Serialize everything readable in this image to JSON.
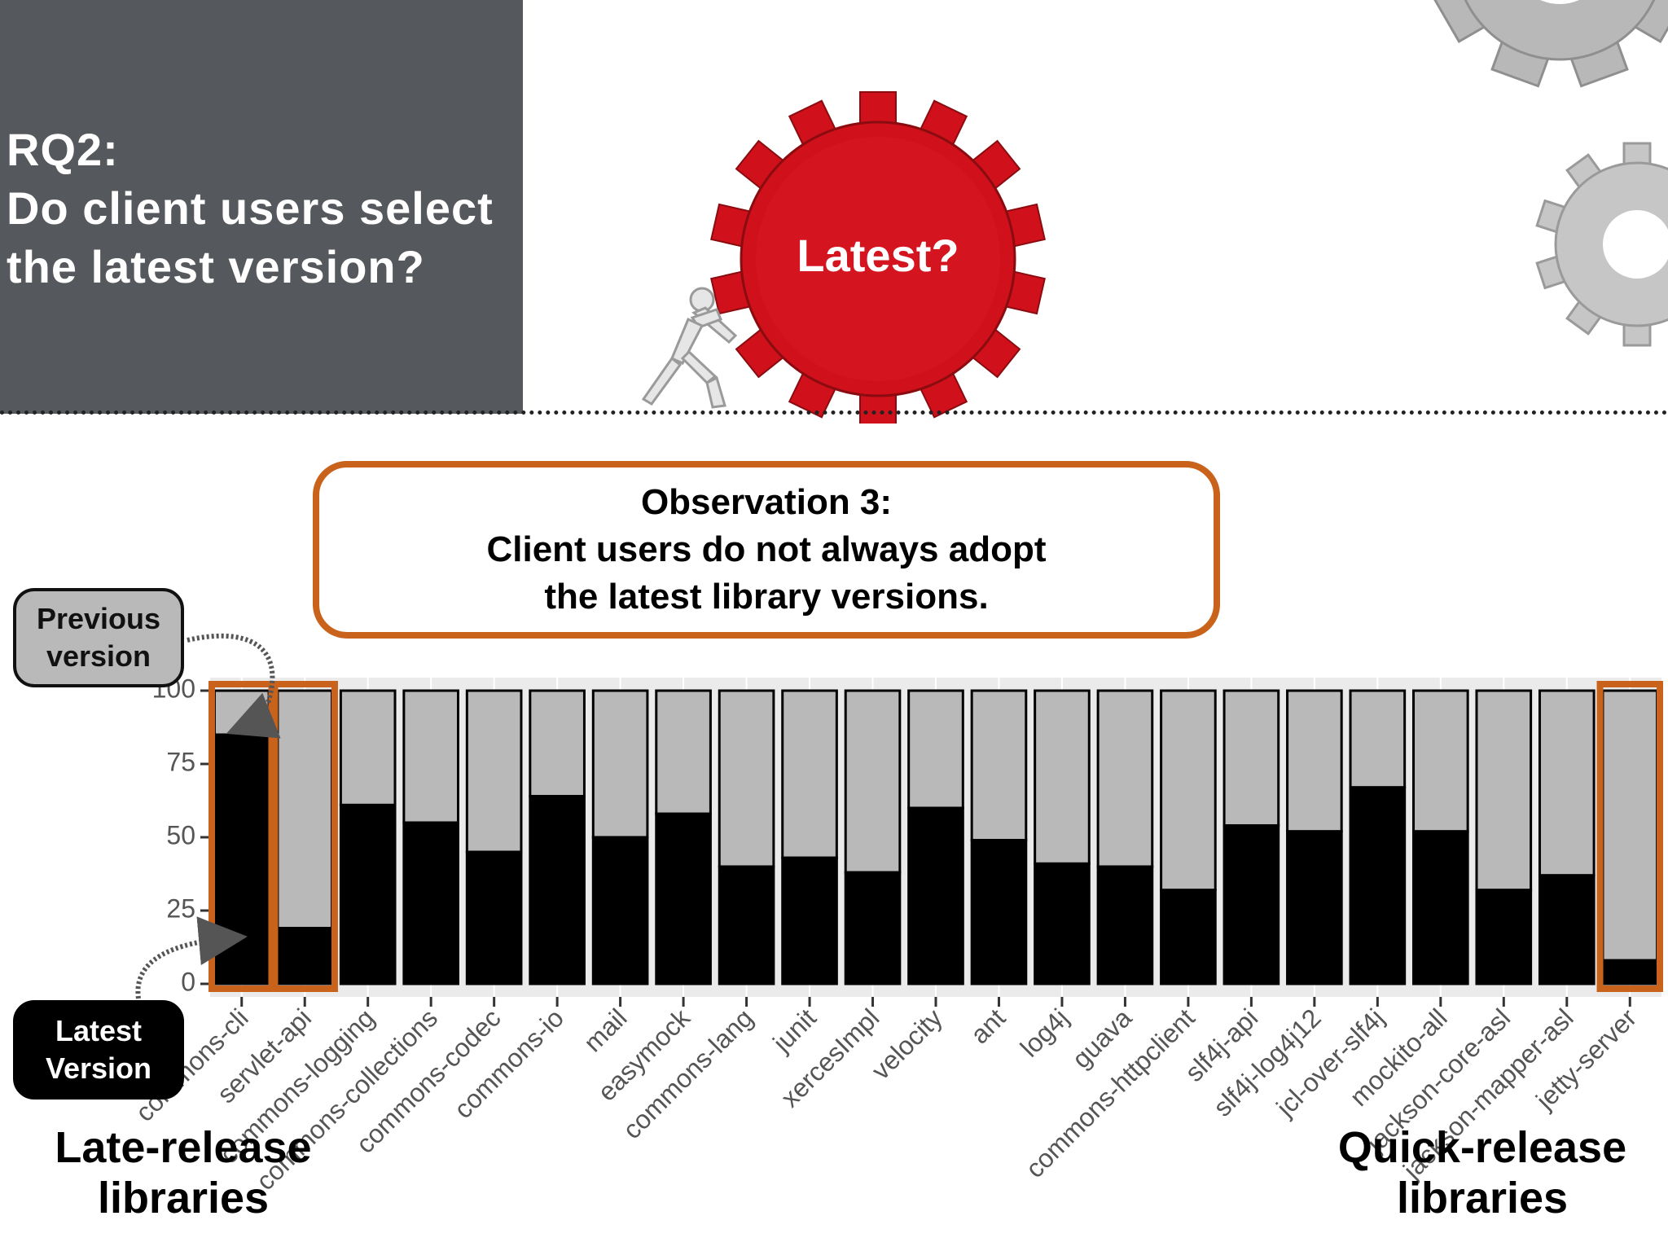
{
  "header": {
    "rq_label": "RQ2:",
    "question_line1": "Do client users select",
    "question_line2": "the latest version?",
    "gear_label": "Latest?"
  },
  "observation": {
    "title": "Observation 3:",
    "line1": "Client users do not always adopt",
    "line2": "the latest library versions."
  },
  "callouts": {
    "previous": [
      "Previous",
      "version"
    ],
    "latest": [
      "Latest",
      "Version"
    ]
  },
  "groups": {
    "late": [
      "Late-release",
      "libraries"
    ],
    "quick": [
      "Quick-release",
      "libraries"
    ]
  },
  "colors": {
    "latest": "#000000",
    "previous": "#b9b9b9",
    "highlight": "#c9621a",
    "panel": "#55585c",
    "gear_red": "#d0101a"
  },
  "chart_data": {
    "type": "bar",
    "stacked": true,
    "ylim": [
      0,
      100
    ],
    "yticks": [
      0,
      25,
      50,
      75,
      100
    ],
    "categories": [
      "commons-cli",
      "servlet-api",
      "commons-logging",
      "commons-collections",
      "commons-codec",
      "commons-io",
      "mail",
      "easymock",
      "commons-lang",
      "junit",
      "xercesImpl",
      "velocity",
      "ant",
      "log4j",
      "guava",
      "commons-httpclient",
      "slf4j-api",
      "slf4j-log4j12",
      "jcl-over-slf4j",
      "mockito-all",
      "jackson-core-asl",
      "jackson-mapper-asl",
      "jetty-server"
    ],
    "series": [
      {
        "name": "Latest Version",
        "values": [
          85,
          19,
          61,
          55,
          45,
          64,
          50,
          58,
          40,
          43,
          38,
          60,
          49,
          41,
          40,
          32,
          54,
          52,
          67,
          52,
          32,
          37,
          8
        ]
      },
      {
        "name": "Previous version",
        "values": [
          15,
          81,
          39,
          45,
          55,
          36,
          50,
          42,
          60,
          57,
          62,
          40,
          51,
          59,
          60,
          68,
          46,
          48,
          33,
          48,
          68,
          63,
          92
        ]
      }
    ],
    "highlighted": [
      "commons-cli",
      "servlet-api",
      "jetty-server"
    ]
  }
}
